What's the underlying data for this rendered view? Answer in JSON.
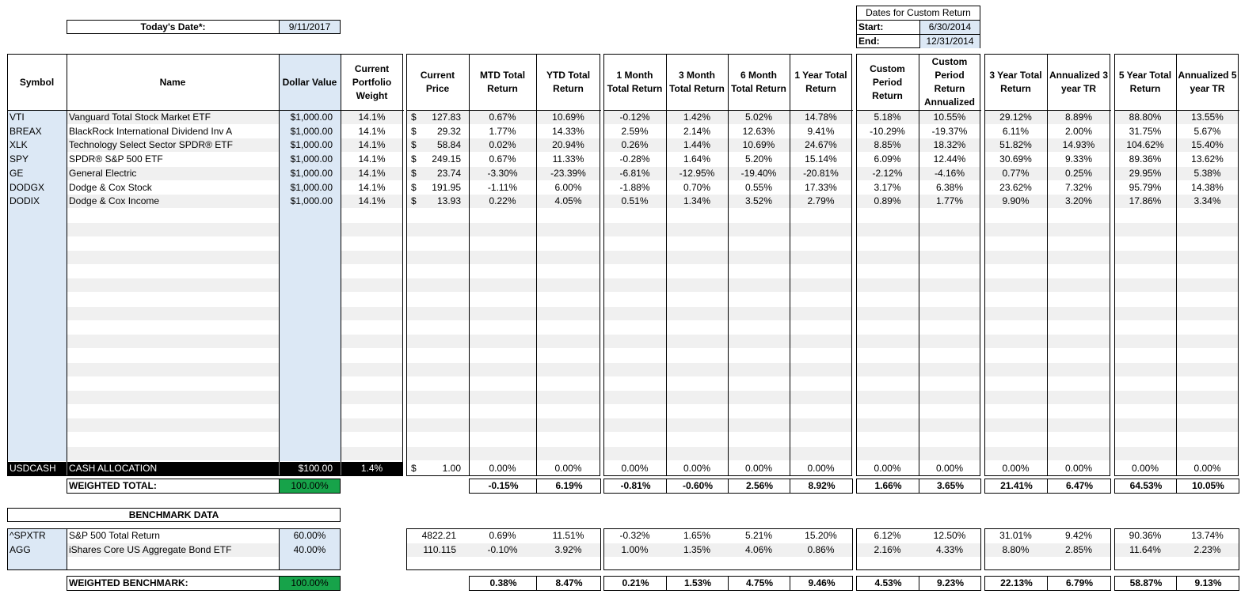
{
  "date": {
    "label": "Today's Date*:",
    "value": "9/11/2017"
  },
  "custom_dates": {
    "title": "Dates for Custom Return",
    "start_label": "Start:",
    "start_value": "6/30/2014",
    "end_label": "End:",
    "end_value": "12/31/2014"
  },
  "headers": {
    "symbol": "Symbol",
    "name": "Name",
    "dollar_value": "Dollar Value",
    "weight": "Current Portfolio Weight",
    "price": "Current Price",
    "mtd": "MTD Total Return",
    "ytd": "YTD Total Return",
    "m1": "1 Month Total Return",
    "m3": "3 Month Total Return",
    "m6": "6 Month Total Return",
    "y1": "1 Year Total Return",
    "custom": "Custom Period Return",
    "custom_ann": "Custom Period Return Annualized",
    "y3": "3 Year Total Return",
    "ann3": "Annualized 3 year TR",
    "y5": "5 Year Total Return",
    "ann5": "Annualized 5 year TR"
  },
  "holdings": [
    {
      "symbol": "VTI",
      "name": "Vanguard Total Stock Market ETF",
      "dollar": "$1,000.00",
      "weight": "14.1%",
      "cur": "$",
      "price": "127.83",
      "mtd": "0.67%",
      "ytd": "10.69%",
      "m1": "-0.12%",
      "m3": "1.42%",
      "m6": "5.02%",
      "y1": "14.78%",
      "custom": "5.18%",
      "custom_ann": "10.55%",
      "y3": "29.12%",
      "ann3": "8.89%",
      "y5": "88.80%",
      "ann5": "13.55%"
    },
    {
      "symbol": "BREAX",
      "name": "BlackRock International Dividend Inv A",
      "dollar": "$1,000.00",
      "weight": "14.1%",
      "cur": "$",
      "price": "29.32",
      "mtd": "1.77%",
      "ytd": "14.33%",
      "m1": "2.59%",
      "m3": "2.14%",
      "m6": "12.63%",
      "y1": "9.41%",
      "custom": "-10.29%",
      "custom_ann": "-19.37%",
      "y3": "6.11%",
      "ann3": "2.00%",
      "y5": "31.75%",
      "ann5": "5.67%"
    },
    {
      "symbol": "XLK",
      "name": "Technology Select Sector SPDR® ETF",
      "dollar": "$1,000.00",
      "weight": "14.1%",
      "cur": "$",
      "price": "58.84",
      "mtd": "0.02%",
      "ytd": "20.94%",
      "m1": "0.26%",
      "m3": "1.44%",
      "m6": "10.69%",
      "y1": "24.67%",
      "custom": "8.85%",
      "custom_ann": "18.32%",
      "y3": "51.82%",
      "ann3": "14.93%",
      "y5": "104.62%",
      "ann5": "15.40%"
    },
    {
      "symbol": "SPY",
      "name": "SPDR® S&P 500 ETF",
      "dollar": "$1,000.00",
      "weight": "14.1%",
      "cur": "$",
      "price": "249.15",
      "mtd": "0.67%",
      "ytd": "11.33%",
      "m1": "-0.28%",
      "m3": "1.64%",
      "m6": "5.20%",
      "y1": "15.14%",
      "custom": "6.09%",
      "custom_ann": "12.44%",
      "y3": "30.69%",
      "ann3": "9.33%",
      "y5": "89.36%",
      "ann5": "13.62%"
    },
    {
      "symbol": "GE",
      "name": "General Electric",
      "dollar": "$1,000.00",
      "weight": "14.1%",
      "cur": "$",
      "price": "23.74",
      "mtd": "-3.30%",
      "ytd": "-23.39%",
      "m1": "-6.81%",
      "m3": "-12.95%",
      "m6": "-19.40%",
      "y1": "-20.81%",
      "custom": "-2.12%",
      "custom_ann": "-4.16%",
      "y3": "0.77%",
      "ann3": "0.25%",
      "y5": "29.95%",
      "ann5": "5.38%"
    },
    {
      "symbol": "DODGX",
      "name": "Dodge & Cox Stock",
      "dollar": "$1,000.00",
      "weight": "14.1%",
      "cur": "$",
      "price": "191.95",
      "mtd": "-1.11%",
      "ytd": "6.00%",
      "m1": "-1.88%",
      "m3": "0.70%",
      "m6": "0.55%",
      "y1": "17.33%",
      "custom": "3.17%",
      "custom_ann": "6.38%",
      "y3": "23.62%",
      "ann3": "7.32%",
      "y5": "95.79%",
      "ann5": "14.38%"
    },
    {
      "symbol": "DODIX",
      "name": "Dodge & Cox Income",
      "dollar": "$1,000.00",
      "weight": "14.1%",
      "cur": "$",
      "price": "13.93",
      "mtd": "0.22%",
      "ytd": "4.05%",
      "m1": "0.51%",
      "m3": "1.34%",
      "m6": "3.52%",
      "y1": "2.79%",
      "custom": "0.89%",
      "custom_ann": "1.77%",
      "y3": "9.90%",
      "ann3": "3.20%",
      "y5": "17.86%",
      "ann5": "3.34%"
    }
  ],
  "cash": {
    "symbol": "USDCASH",
    "name": "CASH ALLOCATION",
    "dollar": "$100.00",
    "weight": "1.4%",
    "cur": "$",
    "price": "1.00",
    "mtd": "0.00%",
    "ytd": "0.00%",
    "m1": "0.00%",
    "m3": "0.00%",
    "m6": "0.00%",
    "y1": "0.00%",
    "custom": "0.00%",
    "custom_ann": "0.00%",
    "y3": "0.00%",
    "ann3": "0.00%",
    "y5": "0.00%",
    "ann5": "0.00%"
  },
  "weighted_total": {
    "label": "WEIGHTED TOTAL:",
    "weight": "100.00%",
    "mtd": "-0.15%",
    "ytd": "6.19%",
    "m1": "-0.81%",
    "m3": "-0.60%",
    "m6": "2.56%",
    "y1": "8.92%",
    "custom": "1.66%",
    "custom_ann": "3.65%",
    "y3": "21.41%",
    "ann3": "6.47%",
    "y5": "64.53%",
    "ann5": "10.05%"
  },
  "benchmark_title": "BENCHMARK DATA",
  "benchmarks": [
    {
      "symbol": "^SPXTR",
      "name": "S&P 500 Total Return",
      "weight": "60.00%",
      "price": "4822.21",
      "mtd": "0.69%",
      "ytd": "11.51%",
      "m1": "-0.32%",
      "m3": "1.65%",
      "m6": "5.21%",
      "y1": "15.20%",
      "custom": "6.12%",
      "custom_ann": "12.50%",
      "y3": "31.01%",
      "ann3": "9.42%",
      "y5": "90.36%",
      "ann5": "13.74%"
    },
    {
      "symbol": "AGG",
      "name": "iShares Core US Aggregate Bond ETF",
      "weight": "40.00%",
      "price": "110.115",
      "mtd": "-0.10%",
      "ytd": "3.92%",
      "m1": "1.00%",
      "m3": "1.35%",
      "m6": "4.06%",
      "y1": "0.86%",
      "custom": "2.16%",
      "custom_ann": "4.33%",
      "y3": "8.80%",
      "ann3": "2.85%",
      "y5": "11.64%",
      "ann5": "2.23%"
    }
  ],
  "weighted_benchmark": {
    "label": "WEIGHTED BENCHMARK:",
    "weight": "100.00%",
    "mtd": "0.38%",
    "ytd": "8.47%",
    "m1": "0.21%",
    "m3": "1.53%",
    "m6": "4.75%",
    "y1": "9.46%",
    "custom": "4.53%",
    "custom_ann": "9.23%",
    "y3": "22.13%",
    "ann3": "6.79%",
    "y5": "58.87%",
    "ann5": "9.13%"
  }
}
